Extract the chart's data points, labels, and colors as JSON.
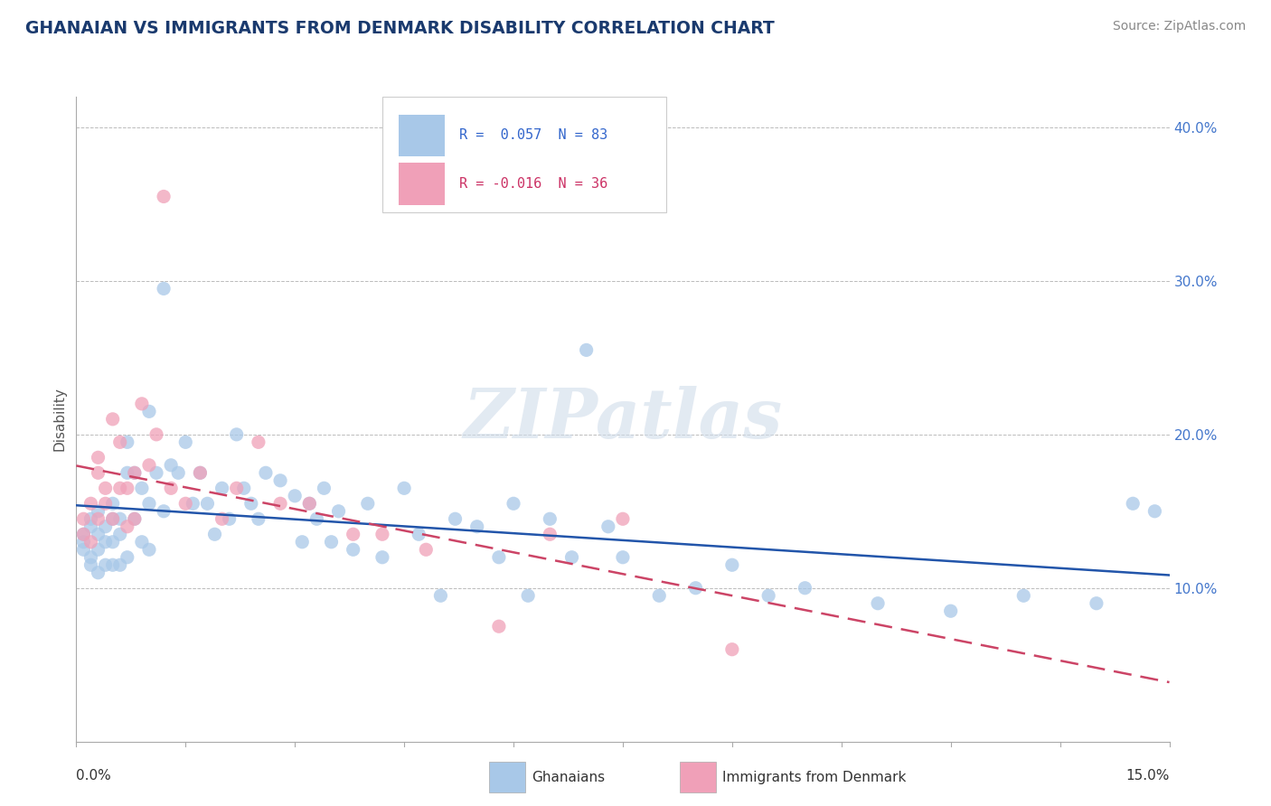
{
  "title": "GHANAIAN VS IMMIGRANTS FROM DENMARK DISABILITY CORRELATION CHART",
  "source": "Source: ZipAtlas.com",
  "ylabel": "Disability",
  "xlim": [
    0.0,
    0.15
  ],
  "ylim": [
    0.0,
    0.42
  ],
  "yticks": [
    0.1,
    0.2,
    0.3,
    0.4
  ],
  "ytick_labels": [
    "10.0%",
    "20.0%",
    "30.0%",
    "40.0%"
  ],
  "watermark": "ZIPatlas",
  "legend_r1": "R =  0.057",
  "legend_n1": "N = 83",
  "legend_r2": "R = -0.016",
  "legend_n2": "N = 36",
  "color_blue": "#a8c8e8",
  "color_pink": "#f0a0b8",
  "color_blue_dark": "#2255aa",
  "color_pink_dark": "#cc4466",
  "legend_label1": "Ghanaians",
  "legend_label2": "Immigrants from Denmark",
  "title_color": "#1a3a6e",
  "axis_color": "#aaaaaa",
  "grid_color": "#bbbbbb",
  "ghanaians_x": [
    0.001,
    0.001,
    0.001,
    0.002,
    0.002,
    0.002,
    0.002,
    0.003,
    0.003,
    0.003,
    0.003,
    0.004,
    0.004,
    0.004,
    0.005,
    0.005,
    0.005,
    0.005,
    0.006,
    0.006,
    0.006,
    0.007,
    0.007,
    0.007,
    0.008,
    0.008,
    0.009,
    0.009,
    0.01,
    0.01,
    0.01,
    0.011,
    0.012,
    0.012,
    0.013,
    0.014,
    0.015,
    0.016,
    0.017,
    0.018,
    0.019,
    0.02,
    0.021,
    0.022,
    0.023,
    0.024,
    0.025,
    0.026,
    0.028,
    0.03,
    0.031,
    0.032,
    0.033,
    0.034,
    0.035,
    0.036,
    0.038,
    0.04,
    0.042,
    0.045,
    0.047,
    0.05,
    0.052,
    0.055,
    0.058,
    0.06,
    0.062,
    0.065,
    0.068,
    0.07,
    0.073,
    0.075,
    0.08,
    0.085,
    0.09,
    0.095,
    0.1,
    0.11,
    0.12,
    0.13,
    0.14,
    0.145,
    0.148
  ],
  "ghanaians_y": [
    0.13,
    0.135,
    0.125,
    0.145,
    0.14,
    0.12,
    0.115,
    0.15,
    0.135,
    0.125,
    0.11,
    0.14,
    0.13,
    0.115,
    0.155,
    0.145,
    0.13,
    0.115,
    0.145,
    0.135,
    0.115,
    0.195,
    0.175,
    0.12,
    0.175,
    0.145,
    0.165,
    0.13,
    0.215,
    0.155,
    0.125,
    0.175,
    0.295,
    0.15,
    0.18,
    0.175,
    0.195,
    0.155,
    0.175,
    0.155,
    0.135,
    0.165,
    0.145,
    0.2,
    0.165,
    0.155,
    0.145,
    0.175,
    0.17,
    0.16,
    0.13,
    0.155,
    0.145,
    0.165,
    0.13,
    0.15,
    0.125,
    0.155,
    0.12,
    0.165,
    0.135,
    0.095,
    0.145,
    0.14,
    0.12,
    0.155,
    0.095,
    0.145,
    0.12,
    0.255,
    0.14,
    0.12,
    0.095,
    0.1,
    0.115,
    0.095,
    0.1,
    0.09,
    0.085,
    0.095,
    0.09,
    0.155,
    0.15
  ],
  "denmark_x": [
    0.001,
    0.001,
    0.002,
    0.002,
    0.003,
    0.003,
    0.003,
    0.004,
    0.004,
    0.005,
    0.005,
    0.006,
    0.006,
    0.007,
    0.007,
    0.008,
    0.008,
    0.009,
    0.01,
    0.011,
    0.012,
    0.013,
    0.015,
    0.017,
    0.02,
    0.022,
    0.025,
    0.028,
    0.032,
    0.038,
    0.042,
    0.048,
    0.058,
    0.065,
    0.075,
    0.09
  ],
  "denmark_y": [
    0.145,
    0.135,
    0.155,
    0.13,
    0.175,
    0.145,
    0.185,
    0.155,
    0.165,
    0.145,
    0.21,
    0.195,
    0.165,
    0.165,
    0.14,
    0.145,
    0.175,
    0.22,
    0.18,
    0.2,
    0.355,
    0.165,
    0.155,
    0.175,
    0.145,
    0.165,
    0.195,
    0.155,
    0.155,
    0.135,
    0.135,
    0.125,
    0.075,
    0.135,
    0.145,
    0.06
  ]
}
